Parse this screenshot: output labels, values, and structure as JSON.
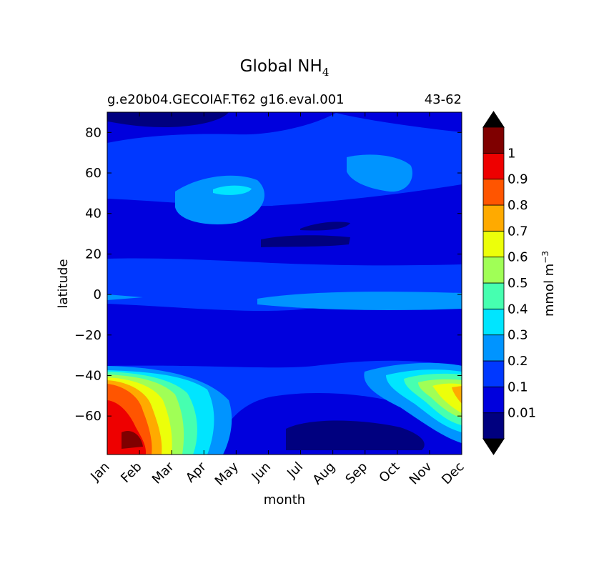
{
  "chart_data": {
    "type": "heatmap",
    "title": {
      "base": "Global NH",
      "sub": "4"
    },
    "subtitle_left": "g.e20b04.GECOIAF.T62 g16.eval.001",
    "subtitle_right": "43-62",
    "xlabel": "month",
    "ylabel": "latitude",
    "x_categories": [
      "Jan",
      "Feb",
      "Mar",
      "Apr",
      "May",
      "Jun",
      "Jul",
      "Aug",
      "Sep",
      "Oct",
      "Nov",
      "Dec"
    ],
    "xlim": [
      0,
      11
    ],
    "ylim": [
      -79,
      90
    ],
    "y_ticks": [
      "80",
      "60",
      "40",
      "20",
      "0",
      "−20",
      "−40",
      "−60"
    ],
    "y_tick_values": [
      80,
      60,
      40,
      20,
      0,
      -20,
      -40,
      -60
    ],
    "colorbar": {
      "label": {
        "base": "mmol m",
        "sup": "−3"
      },
      "levels": [
        0.01,
        0.1,
        0.2,
        0.3,
        0.4,
        0.5,
        0.6,
        0.7,
        0.8,
        0.9,
        1
      ],
      "tick_labels": [
        "0.01",
        "0.1",
        "0.2",
        "0.3",
        "0.4",
        "0.5",
        "0.6",
        "0.7",
        "0.8",
        "0.9",
        "1"
      ],
      "colors": [
        "#00007f",
        "#0000dd",
        "#0038ff",
        "#0094ff",
        "#00e5ff",
        "#46ffb0",
        "#a0ff56",
        "#ecff0a",
        "#ffaa00",
        "#ff5500",
        "#ee0000",
        "#7f0000"
      ],
      "extend": "both"
    }
  }
}
